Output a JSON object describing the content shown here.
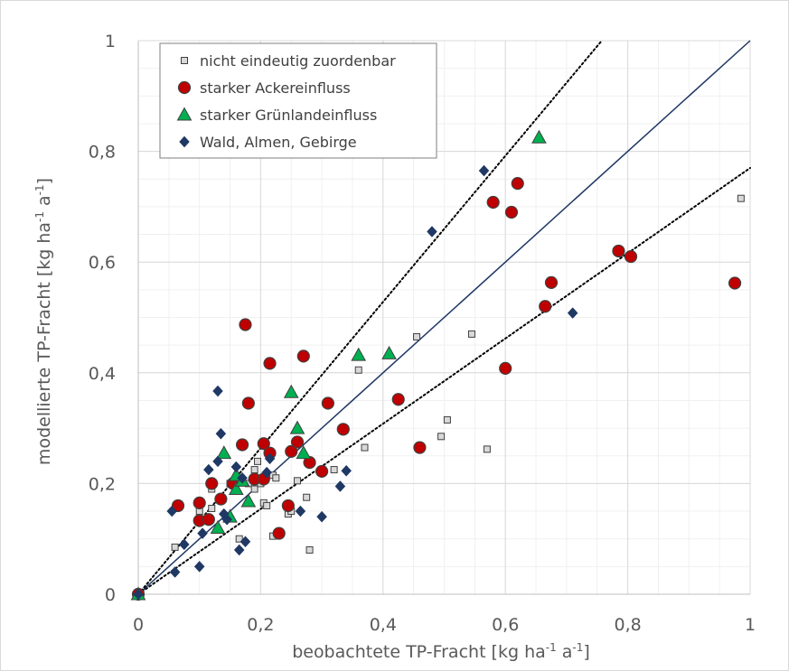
{
  "chart_data": {
    "type": "scatter",
    "title": "",
    "xlabel_parts": [
      "beobachtete TP-Fracht [kg ha",
      "-1",
      " a",
      "-1",
      "]"
    ],
    "ylabel_parts": [
      "modellierte TP-Fracht [kg ha",
      "-1",
      " a",
      "-1",
      "]"
    ],
    "xlim": [
      0,
      1
    ],
    "ylim": [
      0,
      1
    ],
    "x_ticks": [
      0,
      0.2,
      0.4,
      0.6,
      0.8,
      1
    ],
    "x_tick_labels": [
      "0",
      "0,2",
      "0,4",
      "0,6",
      "0,8",
      "1"
    ],
    "y_ticks": [
      0,
      0.2,
      0.4,
      0.6,
      0.8,
      1
    ],
    "y_tick_labels": [
      "0",
      "0,2",
      "0,4",
      "0,6",
      "0,8",
      "1"
    ],
    "minor_grid_step": 0.05,
    "grid": true,
    "legend_position": "top-left",
    "reference_lines": [
      {
        "type": "identity",
        "slope": 1,
        "color": "#1f3864",
        "style": "solid"
      },
      {
        "type": "upper",
        "slope": 1.32,
        "color": "#000000",
        "style": "dotted"
      },
      {
        "type": "lower",
        "slope": 0.77,
        "color": "#000000",
        "style": "dotted"
      }
    ],
    "series": [
      {
        "name": "nicht eindeutig zuordenbar",
        "marker": "square",
        "color": "#d9d9d9",
        "edge": "#404040",
        "points": [
          [
            0.06,
            0.085
          ],
          [
            0.1,
            0.15
          ],
          [
            0.1,
            0.135
          ],
          [
            0.12,
            0.19
          ],
          [
            0.12,
            0.155
          ],
          [
            0.15,
            0.2
          ],
          [
            0.165,
            0.1
          ],
          [
            0.18,
            0.2
          ],
          [
            0.19,
            0.225
          ],
          [
            0.19,
            0.19
          ],
          [
            0.195,
            0.24
          ],
          [
            0.2,
            0.2
          ],
          [
            0.205,
            0.165
          ],
          [
            0.21,
            0.16
          ],
          [
            0.22,
            0.215
          ],
          [
            0.22,
            0.105
          ],
          [
            0.225,
            0.21
          ],
          [
            0.245,
            0.145
          ],
          [
            0.25,
            0.15
          ],
          [
            0.26,
            0.205
          ],
          [
            0.275,
            0.175
          ],
          [
            0.28,
            0.08
          ],
          [
            0.32,
            0.225
          ],
          [
            0.36,
            0.405
          ],
          [
            0.37,
            0.265
          ],
          [
            0.455,
            0.465
          ],
          [
            0.495,
            0.285
          ],
          [
            0.505,
            0.315
          ],
          [
            0.545,
            0.47
          ],
          [
            0.57,
            0.262
          ],
          [
            0.985,
            0.715
          ],
          [
            0,
            0
          ]
        ]
      },
      {
        "name": "starker Ackereinfluss",
        "marker": "circle",
        "color": "#c00000",
        "edge": "#404040",
        "points": [
          [
            0,
            0
          ],
          [
            0.065,
            0.16
          ],
          [
            0.1,
            0.165
          ],
          [
            0.1,
            0.133
          ],
          [
            0.115,
            0.135
          ],
          [
            0.12,
            0.2
          ],
          [
            0.135,
            0.172
          ],
          [
            0.155,
            0.2
          ],
          [
            0.17,
            0.27
          ],
          [
            0.175,
            0.487
          ],
          [
            0.18,
            0.345
          ],
          [
            0.19,
            0.208
          ],
          [
            0.205,
            0.272
          ],
          [
            0.205,
            0.208
          ],
          [
            0.215,
            0.417
          ],
          [
            0.215,
            0.255
          ],
          [
            0.23,
            0.11
          ],
          [
            0.245,
            0.16
          ],
          [
            0.25,
            0.258
          ],
          [
            0.26,
            0.275
          ],
          [
            0.27,
            0.43
          ],
          [
            0.28,
            0.238
          ],
          [
            0.3,
            0.222
          ],
          [
            0.31,
            0.345
          ],
          [
            0.335,
            0.298
          ],
          [
            0.425,
            0.352
          ],
          [
            0.46,
            0.265
          ],
          [
            0.58,
            0.708
          ],
          [
            0.6,
            0.408
          ],
          [
            0.61,
            0.69
          ],
          [
            0.62,
            0.742
          ],
          [
            0.665,
            0.52
          ],
          [
            0.675,
            0.563
          ],
          [
            0.785,
            0.62
          ],
          [
            0.805,
            0.61
          ],
          [
            0.975,
            0.562
          ]
        ]
      },
      {
        "name": "starker Grünlandeinfluss",
        "marker": "triangle",
        "color": "#00b050",
        "edge": "#404040",
        "points": [
          [
            0,
            0
          ],
          [
            0.13,
            0.12
          ],
          [
            0.14,
            0.255
          ],
          [
            0.15,
            0.14
          ],
          [
            0.16,
            0.215
          ],
          [
            0.16,
            0.19
          ],
          [
            0.17,
            0.205
          ],
          [
            0.18,
            0.168
          ],
          [
            0.25,
            0.365
          ],
          [
            0.26,
            0.3
          ],
          [
            0.27,
            0.255
          ],
          [
            0.36,
            0.432
          ],
          [
            0.41,
            0.435
          ],
          [
            0.655,
            0.825
          ]
        ]
      },
      {
        "name": "Wald, Almen, Gebirge",
        "marker": "diamond",
        "color": "#1f3864",
        "edge": "#1f3864",
        "points": [
          [
            0,
            0
          ],
          [
            0.055,
            0.15
          ],
          [
            0.06,
            0.04
          ],
          [
            0.075,
            0.09
          ],
          [
            0.1,
            0.05
          ],
          [
            0.105,
            0.11
          ],
          [
            0.115,
            0.225
          ],
          [
            0.13,
            0.367
          ],
          [
            0.13,
            0.24
          ],
          [
            0.135,
            0.29
          ],
          [
            0.14,
            0.145
          ],
          [
            0.145,
            0.135
          ],
          [
            0.16,
            0.23
          ],
          [
            0.165,
            0.08
          ],
          [
            0.17,
            0.21
          ],
          [
            0.175,
            0.095
          ],
          [
            0.21,
            0.22
          ],
          [
            0.215,
            0.245
          ],
          [
            0.265,
            0.15
          ],
          [
            0.3,
            0.14
          ],
          [
            0.33,
            0.195
          ],
          [
            0.34,
            0.223
          ],
          [
            0.48,
            0.655
          ],
          [
            0.565,
            0.765
          ],
          [
            0.71,
            0.508
          ]
        ]
      }
    ]
  }
}
